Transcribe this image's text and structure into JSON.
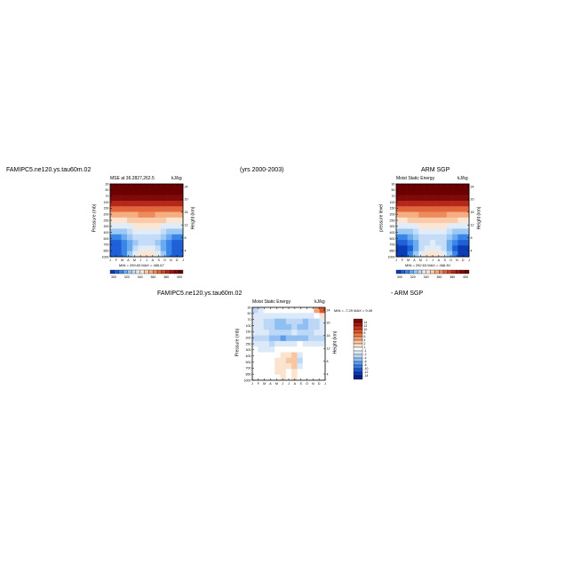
{
  "header": {
    "case_name": "FAMIPC5.ne120.ys.tau60m.02",
    "years": "(yrs 2000-2003)",
    "obs_name": "ARM SGP"
  },
  "panels": {
    "model": {
      "title_left": "MSE at 36.2827,262.5",
      "title_right": "kJ/kg",
      "ylabel": "Pressure (mb)",
      "y2label": "Height (km)",
      "stats": "MIN = 299.83  MAX = 465.67"
    },
    "obs": {
      "title_center": "ARM SGP",
      "title_left": "Moist Static Energy",
      "title_right": "kJ/kg",
      "ylabel": "pressure level",
      "y2label": "Height (km)",
      "stats": "MIN = 292.63  MAX = 468.30"
    },
    "diff": {
      "header_left": "FAMIPC5.ne120.ys.tau60m.02",
      "header_right": "- ARM SGP",
      "title_left": "Moist Static Energy",
      "title_right": "kJ/kg",
      "ylabel": "Pressure (mb)",
      "y2label": "Height (km)",
      "stats": "MIN = -7.29  MAX = 9.49"
    }
  },
  "chart_data": [
    {
      "type": "heatmap",
      "title": "MSE at 36.2827,262.5",
      "units": "kJ/kg",
      "xlabel": "",
      "ylabel": "Pressure (mb)",
      "y2label": "Height (km)",
      "x_ticks": [
        "J",
        "F",
        "M",
        "A",
        "M",
        "J",
        "J",
        "A",
        "S",
        "O",
        "N",
        "D",
        "J"
      ],
      "y_ticks": [
        "30",
        "50",
        "70",
        "100",
        "150",
        "200",
        "250",
        "300",
        "400",
        "500",
        "700",
        "850",
        "1000"
      ],
      "y2_ticks": [
        "24",
        "20",
        "16",
        "12",
        "8",
        "4"
      ],
      "colorbar_ticks": [
        "300",
        "320",
        "340",
        "360",
        "380",
        "400"
      ],
      "colorbar_levels": [
        300,
        310,
        320,
        330,
        340,
        350,
        360,
        370,
        380,
        390,
        400,
        410,
        420,
        430,
        440,
        450,
        460
      ],
      "stats": {
        "min": 299.83,
        "max": 465.67
      },
      "colors": [
        "#0a3cb4",
        "#1f5fd8",
        "#3a86e8",
        "#69aaf0",
        "#9cc8f5",
        "#c4dcf7",
        "#e1ecf7",
        "#fbe6d4",
        "#f9cba9",
        "#f5ad82",
        "#ee8b5c",
        "#e2663b",
        "#cd4427",
        "#b3281a",
        "#981610",
        "#7f0a08",
        "#6a0000"
      ],
      "field_rows_top_to_bottom": [
        [
          465,
          465,
          465,
          465,
          465,
          465,
          465,
          465,
          465,
          465,
          465,
          465,
          465
        ],
        [
          455,
          455,
          456,
          456,
          456,
          456,
          456,
          456,
          456,
          456,
          455,
          455,
          455
        ],
        [
          440,
          441,
          441,
          442,
          442,
          443,
          443,
          443,
          442,
          441,
          441,
          440,
          440
        ],
        [
          420,
          421,
          422,
          423,
          424,
          425,
          425,
          425,
          424,
          423,
          422,
          421,
          420
        ],
        [
          400,
          401,
          402,
          404,
          406,
          407,
          407,
          407,
          406,
          404,
          402,
          401,
          400
        ],
        [
          382,
          383,
          385,
          387,
          389,
          391,
          391,
          391,
          389,
          387,
          385,
          383,
          382
        ],
        [
          365,
          366,
          369,
          372,
          375,
          377,
          378,
          377,
          375,
          372,
          369,
          366,
          365
        ],
        [
          350,
          351,
          354,
          358,
          362,
          364,
          365,
          364,
          362,
          358,
          354,
          351,
          350
        ],
        [
          333,
          334,
          338,
          343,
          350,
          354,
          355,
          354,
          350,
          343,
          338,
          334,
          333
        ],
        [
          318,
          319,
          324,
          331,
          341,
          346,
          348,
          346,
          341,
          331,
          324,
          319,
          318
        ],
        [
          306,
          307,
          313,
          324,
          339,
          347,
          349,
          347,
          339,
          324,
          313,
          307,
          306
        ],
        [
          302,
          303,
          311,
          326,
          345,
          354,
          356,
          354,
          345,
          326,
          311,
          303,
          302
        ],
        [
          300,
          301,
          312,
          330,
          352,
          360,
          362,
          360,
          352,
          330,
          312,
          301,
          300
        ]
      ]
    },
    {
      "type": "heatmap",
      "title": "ARM SGP",
      "subtitle": "Moist Static Energy",
      "units": "kJ/kg",
      "xlabel": "",
      "ylabel": "pressure level",
      "y2label": "Height (km)",
      "x_ticks": [
        "J",
        "F",
        "M",
        "A",
        "M",
        "J",
        "J",
        "A",
        "S",
        "O",
        "N",
        "D",
        "J"
      ],
      "y_ticks": [
        "30",
        "50",
        "70",
        "100",
        "150",
        "200",
        "250",
        "300",
        "400",
        "500",
        "700",
        "850",
        "1000"
      ],
      "y2_ticks": [
        "24",
        "20",
        "16",
        "12",
        "8",
        "4"
      ],
      "colorbar_ticks": [
        "300",
        "320",
        "340",
        "360",
        "380",
        "400"
      ],
      "colorbar_levels": [
        300,
        310,
        320,
        330,
        340,
        350,
        360,
        370,
        380,
        390,
        400,
        410,
        420,
        430,
        440,
        450,
        460
      ],
      "stats": {
        "min": 292.63,
        "max": 468.3
      },
      "colors": [
        "#0a3cb4",
        "#1f5fd8",
        "#3a86e8",
        "#69aaf0",
        "#9cc8f5",
        "#c4dcf7",
        "#e1ecf7",
        "#fbe6d4",
        "#f9cba9",
        "#f5ad82",
        "#ee8b5c",
        "#e2663b",
        "#cd4427",
        "#b3281a",
        "#981610",
        "#7f0a08",
        "#6a0000"
      ],
      "field_rows_top_to_bottom": [
        [
          468,
          468,
          468,
          468,
          468,
          468,
          468,
          468,
          468,
          468,
          468,
          468,
          468
        ],
        [
          456,
          456,
          457,
          457,
          457,
          457,
          457,
          457,
          457,
          457,
          456,
          456,
          456
        ],
        [
          441,
          442,
          442,
          443,
          443,
          444,
          444,
          444,
          443,
          442,
          442,
          441,
          441
        ],
        [
          421,
          422,
          423,
          424,
          425,
          426,
          426,
          426,
          425,
          424,
          423,
          422,
          421
        ],
        [
          401,
          402,
          403,
          405,
          407,
          408,
          408,
          408,
          407,
          405,
          403,
          402,
          401
        ],
        [
          383,
          384,
          386,
          388,
          390,
          392,
          392,
          392,
          390,
          388,
          386,
          384,
          383
        ],
        [
          366,
          367,
          370,
          373,
          376,
          378,
          379,
          378,
          376,
          373,
          370,
          367,
          366
        ],
        [
          350,
          351,
          354,
          358,
          362,
          365,
          366,
          365,
          362,
          358,
          354,
          351,
          350
        ],
        [
          332,
          333,
          337,
          343,
          350,
          355,
          356,
          355,
          350,
          343,
          337,
          333,
          332
        ],
        [
          316,
          317,
          322,
          330,
          341,
          347,
          349,
          347,
          341,
          330,
          322,
          317,
          316
        ],
        [
          303,
          304,
          311,
          323,
          340,
          348,
          350,
          348,
          340,
          323,
          311,
          304,
          303
        ],
        [
          297,
          299,
          308,
          325,
          346,
          355,
          357,
          355,
          346,
          325,
          308,
          299,
          297
        ],
        [
          293,
          296,
          310,
          330,
          353,
          361,
          363,
          361,
          353,
          330,
          310,
          296,
          293
        ]
      ]
    },
    {
      "type": "heatmap",
      "title": "Moist Static Energy",
      "units": "kJ/kg",
      "xlabel": "",
      "ylabel": "Pressure (mb)",
      "y2label": "Height (km)",
      "x_ticks": [
        "J",
        "F",
        "M",
        "A",
        "M",
        "J",
        "J",
        "A",
        "S",
        "O",
        "N",
        "D",
        "J"
      ],
      "y_ticks": [
        "30",
        "50",
        "70",
        "100",
        "150",
        "200",
        "250",
        "300",
        "400",
        "500",
        "700",
        "850",
        "1000"
      ],
      "y2_ticks": [
        "24",
        "20",
        "16",
        "12",
        "8",
        "4"
      ],
      "colorbar_ticks": [
        "14",
        "12",
        "10",
        "8",
        "6",
        "4",
        "2",
        "1",
        "-1",
        "-2",
        "-4",
        "-6",
        "-8",
        "-10",
        "-12",
        "-14"
      ],
      "colorbar_levels": [
        -14,
        -12,
        -10,
        -8,
        -6,
        -4,
        -2,
        -1,
        1,
        2,
        4,
        6,
        8,
        10,
        12,
        14
      ],
      "stats": {
        "min": -7.29,
        "max": 9.49
      },
      "colors": [
        "#08208c",
        "#1036b0",
        "#1f57d0",
        "#3a7ae2",
        "#5e9ced",
        "#8fbff3",
        "#bcd8f6",
        "#dbe9f8",
        "#ffffff",
        "#fbe3cf",
        "#f8c6a1",
        "#f3a274",
        "#ea7c4c",
        "#db562f",
        "#c23520",
        "#a21c14",
        "#7e0a08"
      ],
      "field_rows_top_to_bottom": [
        [
          -3,
          -2,
          -1,
          0,
          0,
          0,
          0,
          0,
          0,
          -1,
          -1,
          4,
          9
        ],
        [
          -2,
          -2,
          -2,
          -2,
          -2,
          -2,
          -2,
          -2,
          -2,
          -2,
          -2,
          -1,
          1
        ],
        [
          -2,
          -2,
          -3,
          -3,
          -5,
          -5,
          -4,
          -3,
          -4,
          -5,
          -4,
          -3,
          -2
        ],
        [
          -2,
          -2,
          -3,
          -4,
          -5,
          -6,
          -5,
          -4,
          -5,
          -6,
          -4,
          -3,
          -2
        ],
        [
          -2,
          -2,
          -2,
          -3,
          -3,
          -3,
          -3,
          -2,
          -3,
          -3,
          -3,
          -2,
          -2
        ],
        [
          -3,
          -3,
          -4,
          -5,
          -6,
          -7,
          -6,
          -5,
          -5,
          -5,
          -4,
          -3,
          -3
        ],
        [
          -2,
          -2,
          -2,
          -3,
          -2,
          -2,
          -2,
          -2,
          -1,
          -2,
          -2,
          -2,
          -2
        ],
        [
          -1,
          -2,
          -2,
          -2,
          -1,
          -1,
          0,
          0,
          -1,
          -1,
          -1,
          -1,
          -1
        ],
        [
          -1,
          -1,
          -1,
          -1,
          0,
          1,
          1,
          2,
          -2,
          0,
          -1,
          -1,
          -1
        ],
        [
          -1,
          -1,
          -1,
          0,
          1,
          1,
          2,
          2,
          -3,
          0,
          -1,
          -1,
          -1
        ],
        [
          -1,
          -1,
          -1,
          0,
          1,
          1,
          1,
          2,
          -2,
          0,
          -1,
          -1,
          -1
        ],
        [
          -1,
          -1,
          0,
          0,
          1,
          1,
          0,
          1,
          -1,
          0,
          -1,
          -1,
          -1
        ],
        [
          -1,
          -1,
          0,
          0,
          0,
          1,
          0,
          1,
          -1,
          0,
          -1,
          -1,
          -1
        ]
      ]
    }
  ]
}
